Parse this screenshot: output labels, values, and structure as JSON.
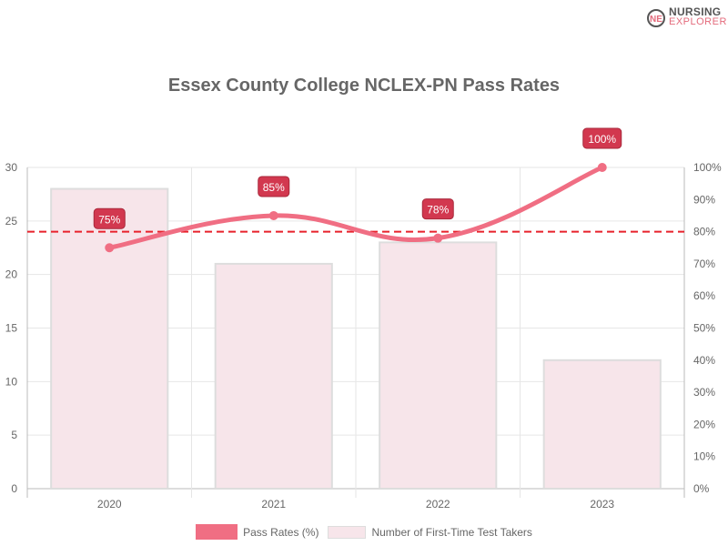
{
  "logo": {
    "line1": "NURSING",
    "line2": "EXPLORER"
  },
  "chart_data": {
    "type": "bar+line",
    "title": "Essex County College NCLEX-PN Pass Rates",
    "categories": [
      "2020",
      "2021",
      "2022",
      "2023"
    ],
    "series": [
      {
        "name": "Pass Rates (%)",
        "type": "line",
        "axis": "right",
        "values": [
          75,
          85,
          78,
          100
        ],
        "labels": [
          "75%",
          "85%",
          "78%",
          "100%"
        ],
        "color": "#f06e83"
      },
      {
        "name": "Number of First-Time Test Takers",
        "type": "bar",
        "axis": "left",
        "values": [
          28,
          21,
          23,
          12
        ],
        "color": "#f7e5ea"
      }
    ],
    "left_axis": {
      "ylim": [
        0,
        30
      ],
      "ticks": [
        "0",
        "5",
        "10",
        "15",
        "20",
        "25",
        "30"
      ]
    },
    "right_axis": {
      "ylim": [
        0,
        100
      ],
      "ticks": [
        "0%",
        "10%",
        "20%",
        "30%",
        "40%",
        "50%",
        "60%",
        "70%",
        "80%",
        "90%",
        "100%"
      ]
    },
    "reference_line": {
      "value": 80,
      "axis": "right",
      "color": "#e8212b",
      "style": "dashed"
    },
    "grid": true,
    "legend_position": "bottom"
  }
}
